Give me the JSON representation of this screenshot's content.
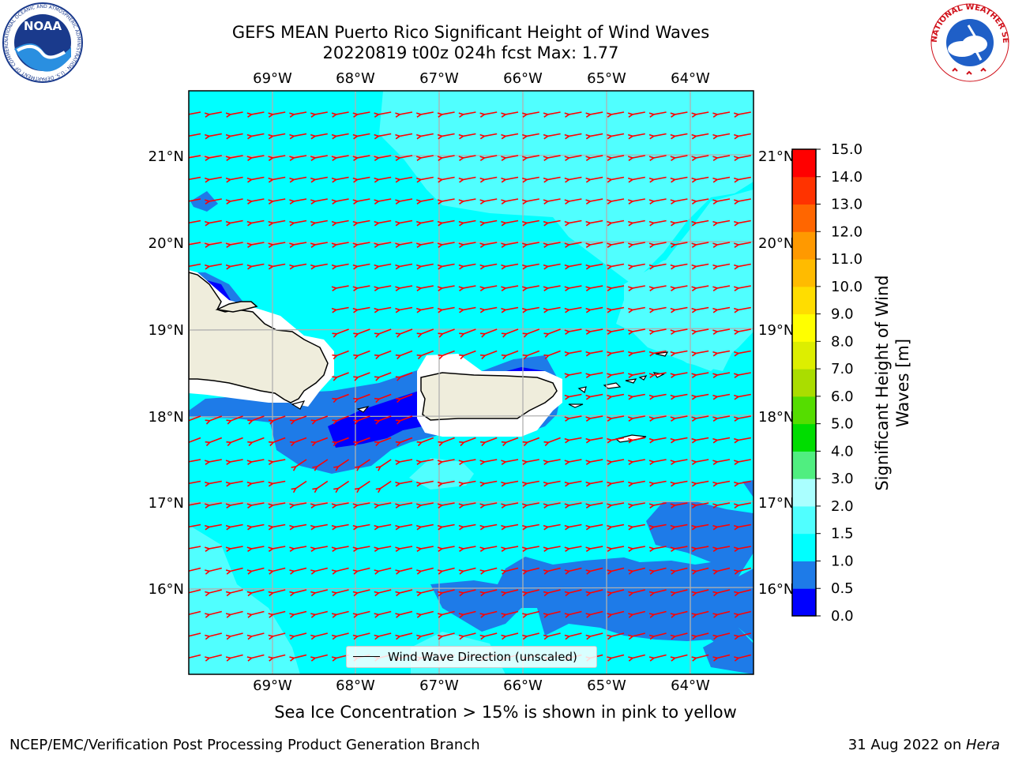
{
  "title": {
    "line1": "GEFS MEAN Puerto Rico Significant Height of Wind Waves",
    "line2": "20220819 t00z 024h fcst   Max: 1.77"
  },
  "map": {
    "lon_labels": [
      "69°W",
      "68°W",
      "67°W",
      "66°W",
      "65°W",
      "64°W"
    ],
    "lat_labels": [
      "21°N",
      "20°N",
      "19°N",
      "18°N",
      "17°N",
      "16°N"
    ],
    "legend_label": "Wind Wave Direction (unscaled)",
    "arrow_color": "#ff0000",
    "land_color": "#efeddc"
  },
  "colorbar": {
    "label": "Significant Height of Wind Waves [m]",
    "ticks": [
      "0.0",
      "0.5",
      "1.0",
      "1.5",
      "2.0",
      "3.0",
      "4.0",
      "5.0",
      "6.0",
      "7.0",
      "8.0",
      "9.0",
      "10.0",
      "11.0",
      "12.0",
      "13.0",
      "14.0",
      "15.0"
    ],
    "colors": [
      "#0000ff",
      "#1e7be8",
      "#00ffff",
      "#50ffff",
      "#aaffff",
      "#50ee80",
      "#00dd00",
      "#55dd00",
      "#aadd00",
      "#ddee00",
      "#ffff00",
      "#ffdd00",
      "#ffbb00",
      "#ff9900",
      "#ff6600",
      "#ff3300",
      "#ff0000"
    ]
  },
  "logos": {
    "noaa_text": "NOAA",
    "noaa_ring": "NATIONAL OCEANIC AND ATMOSPHERIC ADMINISTRATION · U.S. DEPARTMENT OF COMMERCE",
    "nws_ring": "NATIONAL WEATHER SERVICE"
  },
  "caption": "Sea Ice Concentration > 15% is shown in pink to yellow",
  "footer": {
    "left": "NCEP/EMC/Verification Post Processing Product Generation Branch",
    "right_prefix": "31 Aug 2022 on ",
    "right_italic": "Hera"
  }
}
